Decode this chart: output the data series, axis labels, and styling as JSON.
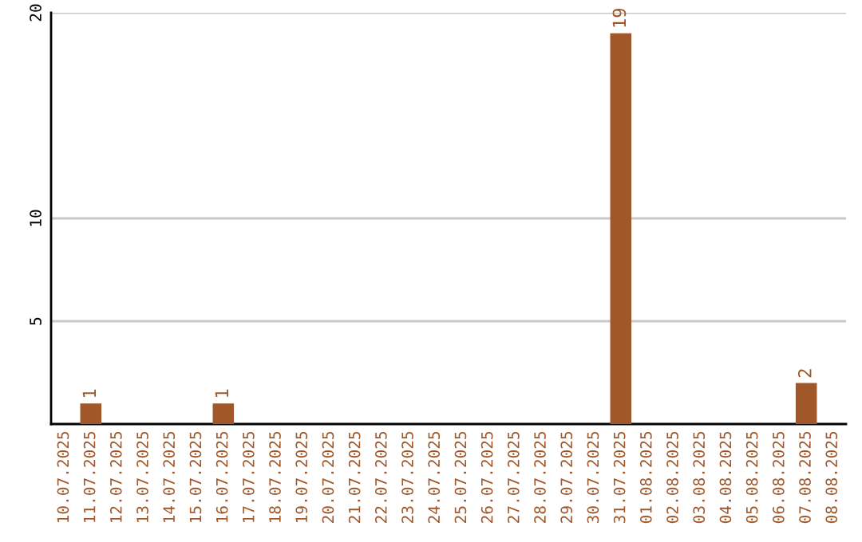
{
  "chart_data": {
    "type": "bar",
    "categories": [
      "10.07.2025",
      "11.07.2025",
      "12.07.2025",
      "13.07.2025",
      "14.07.2025",
      "15.07.2025",
      "16.07.2025",
      "17.07.2025",
      "18.07.2025",
      "19.07.2025",
      "20.07.2025",
      "21.07.2025",
      "22.07.2025",
      "23.07.2025",
      "24.07.2025",
      "25.07.2025",
      "26.07.2025",
      "27.07.2025",
      "28.07.2025",
      "29.07.2025",
      "30.07.2025",
      "31.07.2025",
      "01.08.2025",
      "02.08.2025",
      "03.08.2025",
      "04.08.2025",
      "05.08.2025",
      "06.08.2025",
      "07.08.2025",
      "08.08.2025"
    ],
    "values": [
      0,
      1,
      0,
      0,
      0,
      0,
      1,
      0,
      0,
      0,
      0,
      0,
      0,
      0,
      0,
      0,
      0,
      0,
      0,
      0,
      0,
      19,
      0,
      0,
      0,
      0,
      0,
      0,
      2,
      0
    ],
    "value_labels": [
      null,
      "1",
      null,
      null,
      null,
      null,
      "1",
      null,
      null,
      null,
      null,
      null,
      null,
      null,
      null,
      null,
      null,
      null,
      null,
      null,
      null,
      "19",
      null,
      null,
      null,
      null,
      null,
      null,
      "2",
      null
    ],
    "color": "#a0582a",
    "ylim": [
      0,
      20
    ],
    "yticks": [
      5,
      10,
      20
    ],
    "grid": "y"
  }
}
